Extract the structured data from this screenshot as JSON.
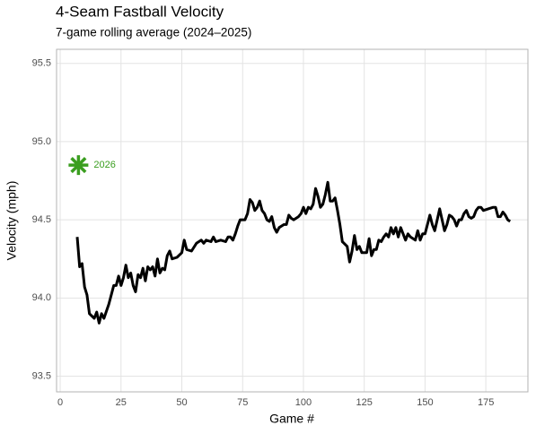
{
  "chart_data": {
    "type": "line",
    "title": "4-Seam Fastball Velocity",
    "subtitle": "7-game rolling average (2024–2025)",
    "xlabel": "Game #",
    "ylabel": "Velocity (mph)",
    "x": [
      7,
      8,
      9,
      10,
      11,
      12,
      14,
      15,
      16,
      17,
      18,
      20,
      22,
      23,
      24,
      25,
      26,
      27,
      28,
      29,
      30,
      31,
      32,
      33,
      34,
      35,
      36,
      37,
      38,
      39,
      40,
      41,
      42,
      43,
      44,
      45,
      46,
      48,
      50,
      51,
      52,
      54,
      56,
      58,
      59,
      60,
      62,
      63,
      64,
      66,
      68,
      69,
      70,
      71,
      72,
      73,
      74,
      76,
      77,
      78,
      79,
      80,
      81,
      82,
      83,
      84,
      85,
      86,
      87,
      88,
      89,
      90,
      92,
      93,
      94,
      95,
      96,
      98,
      99,
      100,
      101,
      102,
      103,
      104,
      105,
      106,
      107,
      108,
      109,
      110,
      111,
      112,
      113,
      114,
      115,
      116,
      118,
      119,
      120,
      121,
      122,
      123,
      124,
      126,
      127,
      128,
      129,
      130,
      131,
      132,
      133,
      134,
      135,
      136,
      137,
      138,
      139,
      140,
      141,
      142,
      143,
      144,
      146,
      147,
      148,
      149,
      150,
      151,
      152,
      153,
      154,
      155,
      156,
      157,
      158,
      159,
      160,
      161,
      162,
      163,
      164,
      165,
      166,
      167,
      168,
      169,
      170,
      171,
      172,
      173,
      174,
      176,
      178,
      179,
      180,
      181,
      182,
      183,
      184,
      185
    ],
    "values": [
      94.39,
      94.2,
      94.22,
      94.07,
      94.02,
      93.9,
      93.87,
      93.91,
      93.84,
      93.9,
      93.87,
      93.96,
      94.08,
      94.08,
      94.14,
      94.08,
      94.13,
      94.21,
      94.13,
      94.16,
      94.08,
      94.04,
      94.15,
      94.13,
      94.19,
      94.11,
      94.2,
      94.18,
      94.2,
      94.14,
      94.25,
      94.16,
      94.19,
      94.18,
      94.27,
      94.3,
      94.25,
      94.26,
      94.29,
      94.37,
      94.31,
      94.3,
      94.35,
      94.37,
      94.35,
      94.37,
      94.36,
      94.39,
      94.36,
      94.37,
      94.36,
      94.39,
      94.39,
      94.37,
      94.41,
      94.46,
      94.5,
      94.5,
      94.54,
      94.63,
      94.61,
      94.56,
      94.58,
      94.62,
      94.56,
      94.54,
      94.5,
      94.49,
      94.52,
      94.45,
      94.42,
      94.45,
      94.47,
      94.47,
      94.53,
      94.51,
      94.5,
      94.52,
      94.54,
      94.58,
      94.54,
      94.58,
      94.57,
      94.6,
      94.7,
      94.65,
      94.58,
      94.6,
      94.66,
      94.74,
      94.62,
      94.62,
      94.64,
      94.56,
      94.47,
      94.36,
      94.33,
      94.23,
      94.3,
      94.4,
      94.31,
      94.33,
      94.29,
      94.29,
      94.38,
      94.27,
      94.31,
      94.31,
      94.37,
      94.36,
      94.39,
      94.41,
      94.39,
      94.45,
      94.41,
      94.45,
      94.39,
      94.45,
      94.41,
      94.37,
      94.41,
      94.39,
      94.37,
      94.43,
      94.37,
      94.41,
      94.41,
      94.47,
      94.53,
      94.47,
      94.43,
      94.5,
      94.57,
      94.5,
      94.43,
      94.47,
      94.53,
      94.52,
      94.5,
      94.46,
      94.5,
      94.5,
      94.54,
      94.56,
      94.52,
      94.51,
      94.52,
      94.56,
      94.58,
      94.58,
      94.56,
      94.57,
      94.58,
      94.58,
      94.52,
      94.52,
      94.55,
      94.53,
      94.5,
      94.49
    ],
    "color": "#000000",
    "highlight": {
      "label": "2026",
      "x": 7.5,
      "y": 94.85,
      "color": "#3a9e1f"
    },
    "xlim": [
      -1.5,
      192.3
    ],
    "ylim": [
      93.4,
      95.59
    ],
    "xticks": [
      0,
      25,
      50,
      75,
      100,
      125,
      150,
      175
    ],
    "yticks": [
      93.5,
      {
        "value": 94,
        "label": "94.0"
      },
      94.5,
      {
        "value": 95,
        "label": "95.0"
      },
      95.5
    ],
    "grid": true
  }
}
